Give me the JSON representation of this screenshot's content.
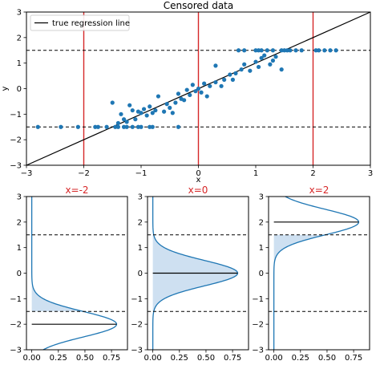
{
  "chart_data": [
    {
      "type": "scatter",
      "title": "Censored data",
      "xlabel": "x",
      "ylabel": "y",
      "xlim": [
        -3,
        3
      ],
      "ylim": [
        -3,
        3
      ],
      "xticks": [
        -3,
        -2,
        -1,
        0,
        1,
        2,
        3
      ],
      "xtick_labels": [
        "−3",
        "−2",
        "−1",
        "0",
        "1",
        "2",
        "3"
      ],
      "yticks": [
        -3,
        -2,
        -1,
        0,
        1,
        2,
        3
      ],
      "ytick_labels": [
        "−3",
        "−2",
        "−1",
        "0",
        "1",
        "2",
        "3"
      ],
      "legend": {
        "label": "true regression line",
        "placement": "upper left"
      },
      "regression_line": {
        "slope": 1,
        "intercept": 0,
        "color": "#000000"
      },
      "censor_lines": {
        "lower": -1.5,
        "upper": 1.5,
        "style": "dashed",
        "color": "#000000"
      },
      "vlines": {
        "x": [
          -2,
          0,
          2
        ],
        "color": "#d62728"
      },
      "point_color": "#1f77b4",
      "points": [
        [
          -2.8,
          -1.5
        ],
        [
          -2.4,
          -1.5
        ],
        [
          -2.1,
          -1.5
        ],
        [
          -1.8,
          -1.5
        ],
        [
          -1.75,
          -1.5
        ],
        [
          -1.6,
          -1.5
        ],
        [
          -1.45,
          -1.5
        ],
        [
          -1.4,
          -1.5
        ],
        [
          -1.3,
          -1.5
        ],
        [
          -1.25,
          -1.5
        ],
        [
          -1.15,
          -1.5
        ],
        [
          -1.05,
          -1.5
        ],
        [
          -1.0,
          -1.5
        ],
        [
          -0.85,
          -1.5
        ],
        [
          -0.8,
          -1.5
        ],
        [
          -0.35,
          -1.5
        ],
        [
          -1.5,
          -0.55
        ],
        [
          -1.4,
          -1.35
        ],
        [
          -1.35,
          -1.0
        ],
        [
          -1.3,
          -1.2
        ],
        [
          -1.25,
          -1.3
        ],
        [
          -1.2,
          -0.65
        ],
        [
          -1.15,
          -0.85
        ],
        [
          -1.1,
          -1.2
        ],
        [
          -1.05,
          -0.9
        ],
        [
          -1.0,
          -0.95
        ],
        [
          -0.95,
          -0.8
        ],
        [
          -0.9,
          -1.05
        ],
        [
          -0.85,
          -0.7
        ],
        [
          -0.8,
          -0.95
        ],
        [
          -0.75,
          -0.85
        ],
        [
          -0.7,
          -0.3
        ],
        [
          -0.6,
          -0.9
        ],
        [
          -0.55,
          -0.6
        ],
        [
          -0.5,
          -0.75
        ],
        [
          -0.45,
          -0.95
        ],
        [
          -0.4,
          -0.55
        ],
        [
          -0.35,
          -0.2
        ],
        [
          -0.3,
          -0.4
        ],
        [
          -0.25,
          -0.45
        ],
        [
          -0.2,
          -0.05
        ],
        [
          -0.15,
          -0.25
        ],
        [
          -0.1,
          0.15
        ],
        [
          -0.05,
          -0.1
        ],
        [
          0.0,
          0.0
        ],
        [
          0.05,
          -0.15
        ],
        [
          0.1,
          0.2
        ],
        [
          0.15,
          -0.3
        ],
        [
          0.2,
          0.1
        ],
        [
          0.3,
          0.9
        ],
        [
          0.3,
          0.25
        ],
        [
          0.4,
          0.1
        ],
        [
          0.45,
          0.35
        ],
        [
          0.55,
          0.55
        ],
        [
          0.6,
          0.35
        ],
        [
          0.65,
          0.6
        ],
        [
          0.75,
          0.75
        ],
        [
          0.8,
          0.95
        ],
        [
          0.9,
          0.7
        ],
        [
          1.0,
          1.05
        ],
        [
          1.05,
          0.85
        ],
        [
          1.1,
          1.2
        ],
        [
          1.15,
          1.3
        ],
        [
          1.25,
          0.95
        ],
        [
          1.3,
          1.1
        ],
        [
          1.35,
          1.25
        ],
        [
          1.45,
          0.75
        ],
        [
          0.7,
          1.5
        ],
        [
          0.8,
          1.5
        ],
        [
          1.0,
          1.5
        ],
        [
          1.05,
          1.5
        ],
        [
          1.1,
          1.5
        ],
        [
          1.2,
          1.5
        ],
        [
          1.3,
          1.5
        ],
        [
          1.45,
          1.5
        ],
        [
          1.5,
          1.5
        ],
        [
          1.55,
          1.5
        ],
        [
          1.6,
          1.5
        ],
        [
          1.7,
          1.5
        ],
        [
          1.8,
          1.5
        ],
        [
          2.05,
          1.5
        ],
        [
          2.1,
          1.5
        ],
        [
          2.2,
          1.5
        ],
        [
          2.3,
          1.5
        ],
        [
          2.4,
          1.5
        ]
      ]
    },
    {
      "type": "area",
      "title": "x=-2",
      "title_color": "#d62728",
      "mean": -2,
      "sd": 0.5,
      "xlim": [
        -0.05,
        0.9
      ],
      "ylim": [
        -3,
        3
      ],
      "xticks": [
        0.0,
        0.25,
        0.5,
        0.75
      ],
      "xtick_labels": [
        "0.00",
        "0.25",
        "0.50",
        "0.75"
      ],
      "yticks": [
        -3,
        -2,
        -1,
        0,
        1,
        2,
        3
      ],
      "ytick_labels": [
        "−3",
        "−2",
        "−1",
        "0",
        "1",
        "2",
        "3"
      ],
      "censor_lines": [
        -1.5,
        1.5
      ],
      "line_color": "#1f77b4",
      "fill_color": "#c6dbef"
    },
    {
      "type": "area",
      "title": "x=0",
      "title_color": "#d62728",
      "mean": 0,
      "sd": 0.5,
      "xlim": [
        -0.05,
        0.9
      ],
      "ylim": [
        -3,
        3
      ],
      "xticks": [
        0.0,
        0.25,
        0.5,
        0.75
      ],
      "xtick_labels": [
        "0.00",
        "0.25",
        "0.50",
        "0.75"
      ],
      "yticks": [
        -3,
        -2,
        -1,
        0,
        1,
        2,
        3
      ],
      "ytick_labels": [
        "−3",
        "−2",
        "−1",
        "0",
        "1",
        "2",
        "3"
      ],
      "censor_lines": [
        -1.5,
        1.5
      ],
      "line_color": "#1f77b4",
      "fill_color": "#c6dbef"
    },
    {
      "type": "area",
      "title": "x=2",
      "title_color": "#d62728",
      "mean": 2,
      "sd": 0.5,
      "xlim": [
        -0.05,
        0.9
      ],
      "ylim": [
        -3,
        3
      ],
      "xticks": [
        0.0,
        0.25,
        0.5,
        0.75
      ],
      "xtick_labels": [
        "0.00",
        "0.25",
        "0.50",
        "0.75"
      ],
      "yticks": [
        -3,
        -2,
        -1,
        0,
        1,
        2,
        3
      ],
      "ytick_labels": [
        "−3",
        "−2",
        "−1",
        "0",
        "1",
        "2",
        "3"
      ],
      "censor_lines": [
        -1.5,
        1.5
      ],
      "line_color": "#1f77b4",
      "fill_color": "#c6dbef"
    }
  ]
}
